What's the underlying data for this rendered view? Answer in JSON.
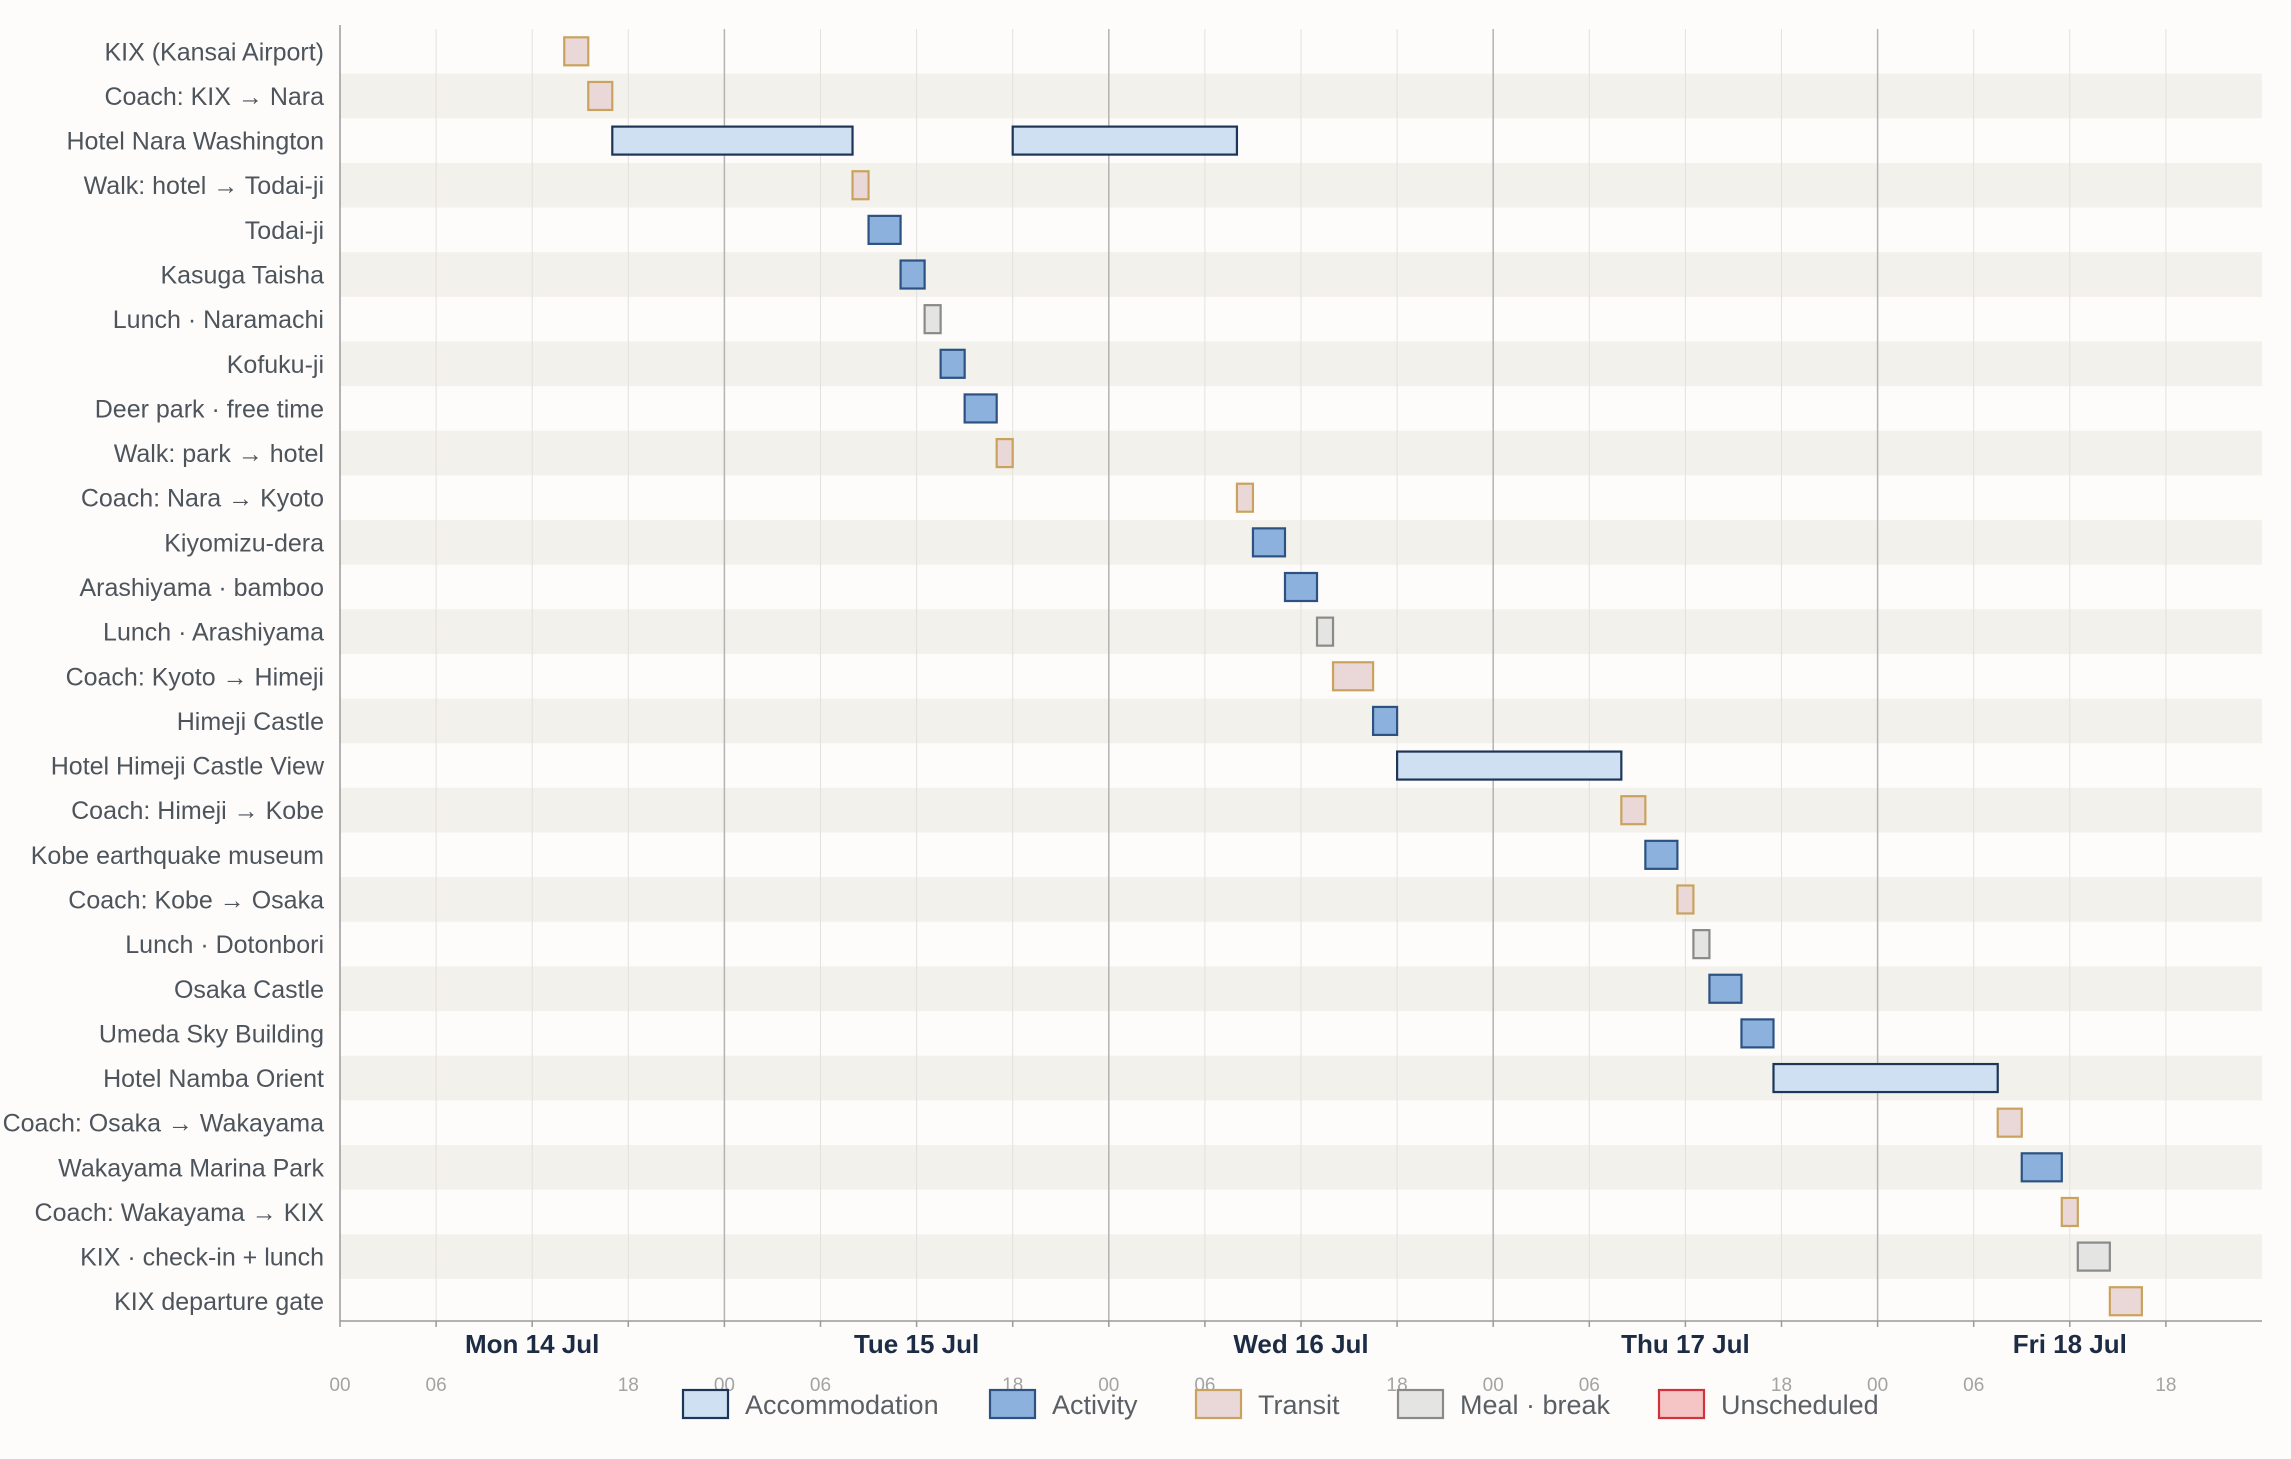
{
  "chart_data": {
    "type": "gantt",
    "time_unit": "hours from Mon 14 Jul 00:00",
    "xlim": [
      0,
      120
    ],
    "rows": [
      "KIX (Kansai Airport)",
      "Coach: KIX → Nara",
      "Hotel Nara Washington",
      "Walk: hotel → Todai-ji",
      "Todai-ji",
      "Kasuga Taisha",
      "Lunch · Naramachi",
      "Kofuku-ji",
      "Deer park · free time",
      "Walk: park → hotel",
      "Coach: Nara → Kyoto",
      "Kiyomizu-dera",
      "Arashiyama · bamboo",
      "Lunch · Arashiyama",
      "Coach: Kyoto → Himeji",
      "Himeji Castle",
      "Hotel Himeji Castle View",
      "Coach: Himeji → Kobe",
      "Kobe earthquake museum",
      "Coach: Kobe → Osaka",
      "Lunch · Dotonbori",
      "Osaka Castle",
      "Umeda Sky Building",
      "Hotel Namba Orient",
      "Coach: Osaka → Wakayama",
      "Wakayama Marina Park",
      "Coach: Wakayama → KIX",
      "KIX · check-in + lunch",
      "KIX departure gate"
    ],
    "tasks": [
      {
        "row": 0,
        "start": 14.0,
        "end": 15.5,
        "category": "transit"
      },
      {
        "row": 1,
        "start": 15.5,
        "end": 17.0,
        "category": "transit"
      },
      {
        "row": 2,
        "start": 17.0,
        "end": 32.0,
        "category": "accommodation"
      },
      {
        "row": 2,
        "start": 42.0,
        "end": 56.0,
        "category": "accommodation"
      },
      {
        "row": 3,
        "start": 32.0,
        "end": 33.0,
        "category": "transit"
      },
      {
        "row": 4,
        "start": 33.0,
        "end": 35.0,
        "category": "activity"
      },
      {
        "row": 5,
        "start": 35.0,
        "end": 36.5,
        "category": "activity"
      },
      {
        "row": 6,
        "start": 36.5,
        "end": 37.5,
        "category": "meal"
      },
      {
        "row": 7,
        "start": 37.5,
        "end": 39.0,
        "category": "activity"
      },
      {
        "row": 8,
        "start": 39.0,
        "end": 41.0,
        "category": "activity"
      },
      {
        "row": 9,
        "start": 41.0,
        "end": 42.0,
        "category": "transit"
      },
      {
        "row": 10,
        "start": 56.0,
        "end": 57.0,
        "category": "transit"
      },
      {
        "row": 11,
        "start": 57.0,
        "end": 59.0,
        "category": "activity"
      },
      {
        "row": 12,
        "start": 59.0,
        "end": 61.0,
        "category": "activity"
      },
      {
        "row": 13,
        "start": 61.0,
        "end": 62.0,
        "category": "meal"
      },
      {
        "row": 14,
        "start": 62.0,
        "end": 64.5,
        "category": "transit"
      },
      {
        "row": 15,
        "start": 64.5,
        "end": 66.0,
        "category": "activity"
      },
      {
        "row": 16,
        "start": 66.0,
        "end": 80.0,
        "category": "accommodation"
      },
      {
        "row": 17,
        "start": 80.0,
        "end": 81.5,
        "category": "transit"
      },
      {
        "row": 18,
        "start": 81.5,
        "end": 83.5,
        "category": "activity"
      },
      {
        "row": 19,
        "start": 83.5,
        "end": 84.5,
        "category": "transit"
      },
      {
        "row": 20,
        "start": 84.5,
        "end": 85.5,
        "category": "meal"
      },
      {
        "row": 21,
        "start": 85.5,
        "end": 87.5,
        "category": "activity"
      },
      {
        "row": 22,
        "start": 87.5,
        "end": 89.5,
        "category": "activity"
      },
      {
        "row": 23,
        "start": 89.5,
        "end": 103.5,
        "category": "accommodation"
      },
      {
        "row": 24,
        "start": 103.5,
        "end": 105.0,
        "category": "transit"
      },
      {
        "row": 25,
        "start": 105.0,
        "end": 107.5,
        "category": "activity"
      },
      {
        "row": 26,
        "start": 107.5,
        "end": 108.5,
        "category": "transit"
      },
      {
        "row": 27,
        "start": 108.5,
        "end": 110.5,
        "category": "meal"
      },
      {
        "row": 28,
        "start": 110.5,
        "end": 112.5,
        "category": "transit"
      }
    ],
    "day_labels": [
      {
        "label": "Mon 14 Jul",
        "at": 12
      },
      {
        "label": "Tue 15 Jul",
        "at": 36
      },
      {
        "label": "Wed 16 Jul",
        "at": 60
      },
      {
        "label": "Thu 17 Jul",
        "at": 84
      },
      {
        "label": "Fri 18 Jul",
        "at": 108
      }
    ],
    "hour_ticks": [
      {
        "label": "00",
        "at": 0
      },
      {
        "label": "06",
        "at": 6
      },
      {
        "label": "18",
        "at": 18
      },
      {
        "label": "00",
        "at": 24
      },
      {
        "label": "06",
        "at": 30
      },
      {
        "label": "18",
        "at": 42
      },
      {
        "label": "00",
        "at": 48
      },
      {
        "label": "06",
        "at": 54
      },
      {
        "label": "18",
        "at": 66
      },
      {
        "label": "00",
        "at": 72
      },
      {
        "label": "06",
        "at": 78
      },
      {
        "label": "18",
        "at": 90
      },
      {
        "label": "00",
        "at": 96
      },
      {
        "label": "06",
        "at": 102
      },
      {
        "label": "18",
        "at": 114
      }
    ],
    "legend": [
      {
        "key": "accommodation",
        "label": "Accommodation"
      },
      {
        "key": "activity",
        "label": "Activity"
      },
      {
        "key": "transit",
        "label": "Transit"
      },
      {
        "key": "meal",
        "label": "Meal · break"
      },
      {
        "key": "unscheduled",
        "label": "Unscheduled"
      }
    ],
    "colors": {
      "accommodation": {
        "fill": "#cfe0f3",
        "stroke": "#1d3557"
      },
      "activity": {
        "fill": "#8bb1dc",
        "stroke": "#2d5282"
      },
      "transit": {
        "fill": "#ead7d7",
        "stroke": "#c9a35e"
      },
      "meal": {
        "fill": "#e4e4e2",
        "stroke": "#8a8a8a"
      },
      "unscheduled": {
        "fill": "#f5c4c4",
        "stroke": "#d2323c"
      },
      "row_band": "#f3f1ec",
      "background": "#fdfcfa"
    },
    "grid": true,
    "legend_position": "bottom"
  }
}
